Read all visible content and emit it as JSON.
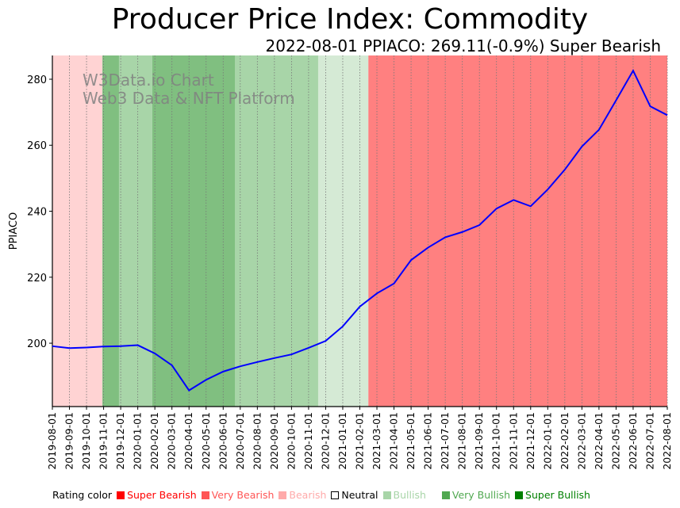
{
  "title": "Producer Price Index: Commodity",
  "subtitle": "2022-08-01 PPIACO: 269.11(-0.9%) Super Bearish",
  "watermark": [
    "W3Data.io Chart",
    "Web3 Data & NFT Platform"
  ],
  "legend": {
    "label": "Rating color",
    "items": [
      {
        "name": "Super Bearish",
        "color": "#ff0000",
        "text_color": "#ff0000"
      },
      {
        "name": "Very Bearish",
        "color": "#ff5555",
        "text_color": "#ff5555"
      },
      {
        "name": "Bearish",
        "color": "#ffaaaa",
        "text_color": "#ffaaaa"
      },
      {
        "name": "Neutral",
        "color": "#ffffff",
        "text_color": "#000000"
      },
      {
        "name": "Bullish",
        "color": "#a8d5a8",
        "text_color": "#a8d5a8"
      },
      {
        "name": "Very Bullish",
        "color": "#50a850",
        "text_color": "#50a850"
      },
      {
        "name": "Super Bullish",
        "color": "#008000",
        "text_color": "#008000"
      }
    ]
  },
  "chart_data": {
    "type": "line",
    "title": "Producer Price Index: Commodity",
    "xlabel": "",
    "ylabel": "PPIACO",
    "ylim": [
      180.8,
      287.2
    ],
    "yticks": [
      200,
      220,
      240,
      260,
      280
    ],
    "grid": "vertical dotted",
    "x": [
      "2019-08-01",
      "2019-09-01",
      "2019-10-01",
      "2019-11-01",
      "2019-12-01",
      "2020-01-01",
      "2020-02-01",
      "2020-03-01",
      "2020-04-01",
      "2020-05-01",
      "2020-06-01",
      "2020-07-01",
      "2020-08-01",
      "2020-09-01",
      "2020-10-01",
      "2020-11-01",
      "2020-12-01",
      "2021-01-01",
      "2021-02-01",
      "2021-03-01",
      "2021-04-01",
      "2021-05-01",
      "2021-06-01",
      "2021-07-01",
      "2021-08-01",
      "2021-09-01",
      "2021-10-01",
      "2021-11-01",
      "2021-12-01",
      "2022-01-01",
      "2022-02-01",
      "2022-03-01",
      "2022-04-01",
      "2022-05-01",
      "2022-06-01",
      "2022-07-01",
      "2022-08-01"
    ],
    "series": [
      {
        "name": "PPIACO",
        "color": "#0000ff",
        "values": [
          199.1,
          198.5,
          198.7,
          199.0,
          199.1,
          199.4,
          196.9,
          193.3,
          185.7,
          188.9,
          191.4,
          193.0,
          194.3,
          195.5,
          196.6,
          198.6,
          200.7,
          205.1,
          211.1,
          215.1,
          218.1,
          225.2,
          229.0,
          232.1,
          233.7,
          235.8,
          240.8,
          243.4,
          241.5,
          246.6,
          252.6,
          259.6,
          264.7,
          273.6,
          282.6,
          271.8,
          269.11
        ]
      }
    ],
    "rating_bands": [
      {
        "rating": "Bearish",
        "from_index": 0,
        "to_index": 2.93,
        "color": "#ffd3d3"
      },
      {
        "rating": "Very Bullish",
        "from_index": 2.93,
        "to_index": 3.9,
        "color": "#80bf80"
      },
      {
        "rating": "Bullish",
        "from_index": 3.9,
        "to_index": 5.85,
        "color": "#a8d5a8"
      },
      {
        "rating": "Very Bullish",
        "from_index": 5.85,
        "to_index": 10.7,
        "color": "#80bf80"
      },
      {
        "rating": "Bullish",
        "from_index": 10.7,
        "to_index": 15.56,
        "color": "#a8d5a8"
      },
      {
        "rating": "Bullish",
        "from_index": 15.56,
        "to_index": 18.5,
        "color": "#d5ead5"
      },
      {
        "rating": "Super Bearish",
        "from_index": 18.5,
        "to_index": 36,
        "color": "#ff8080"
      }
    ]
  }
}
